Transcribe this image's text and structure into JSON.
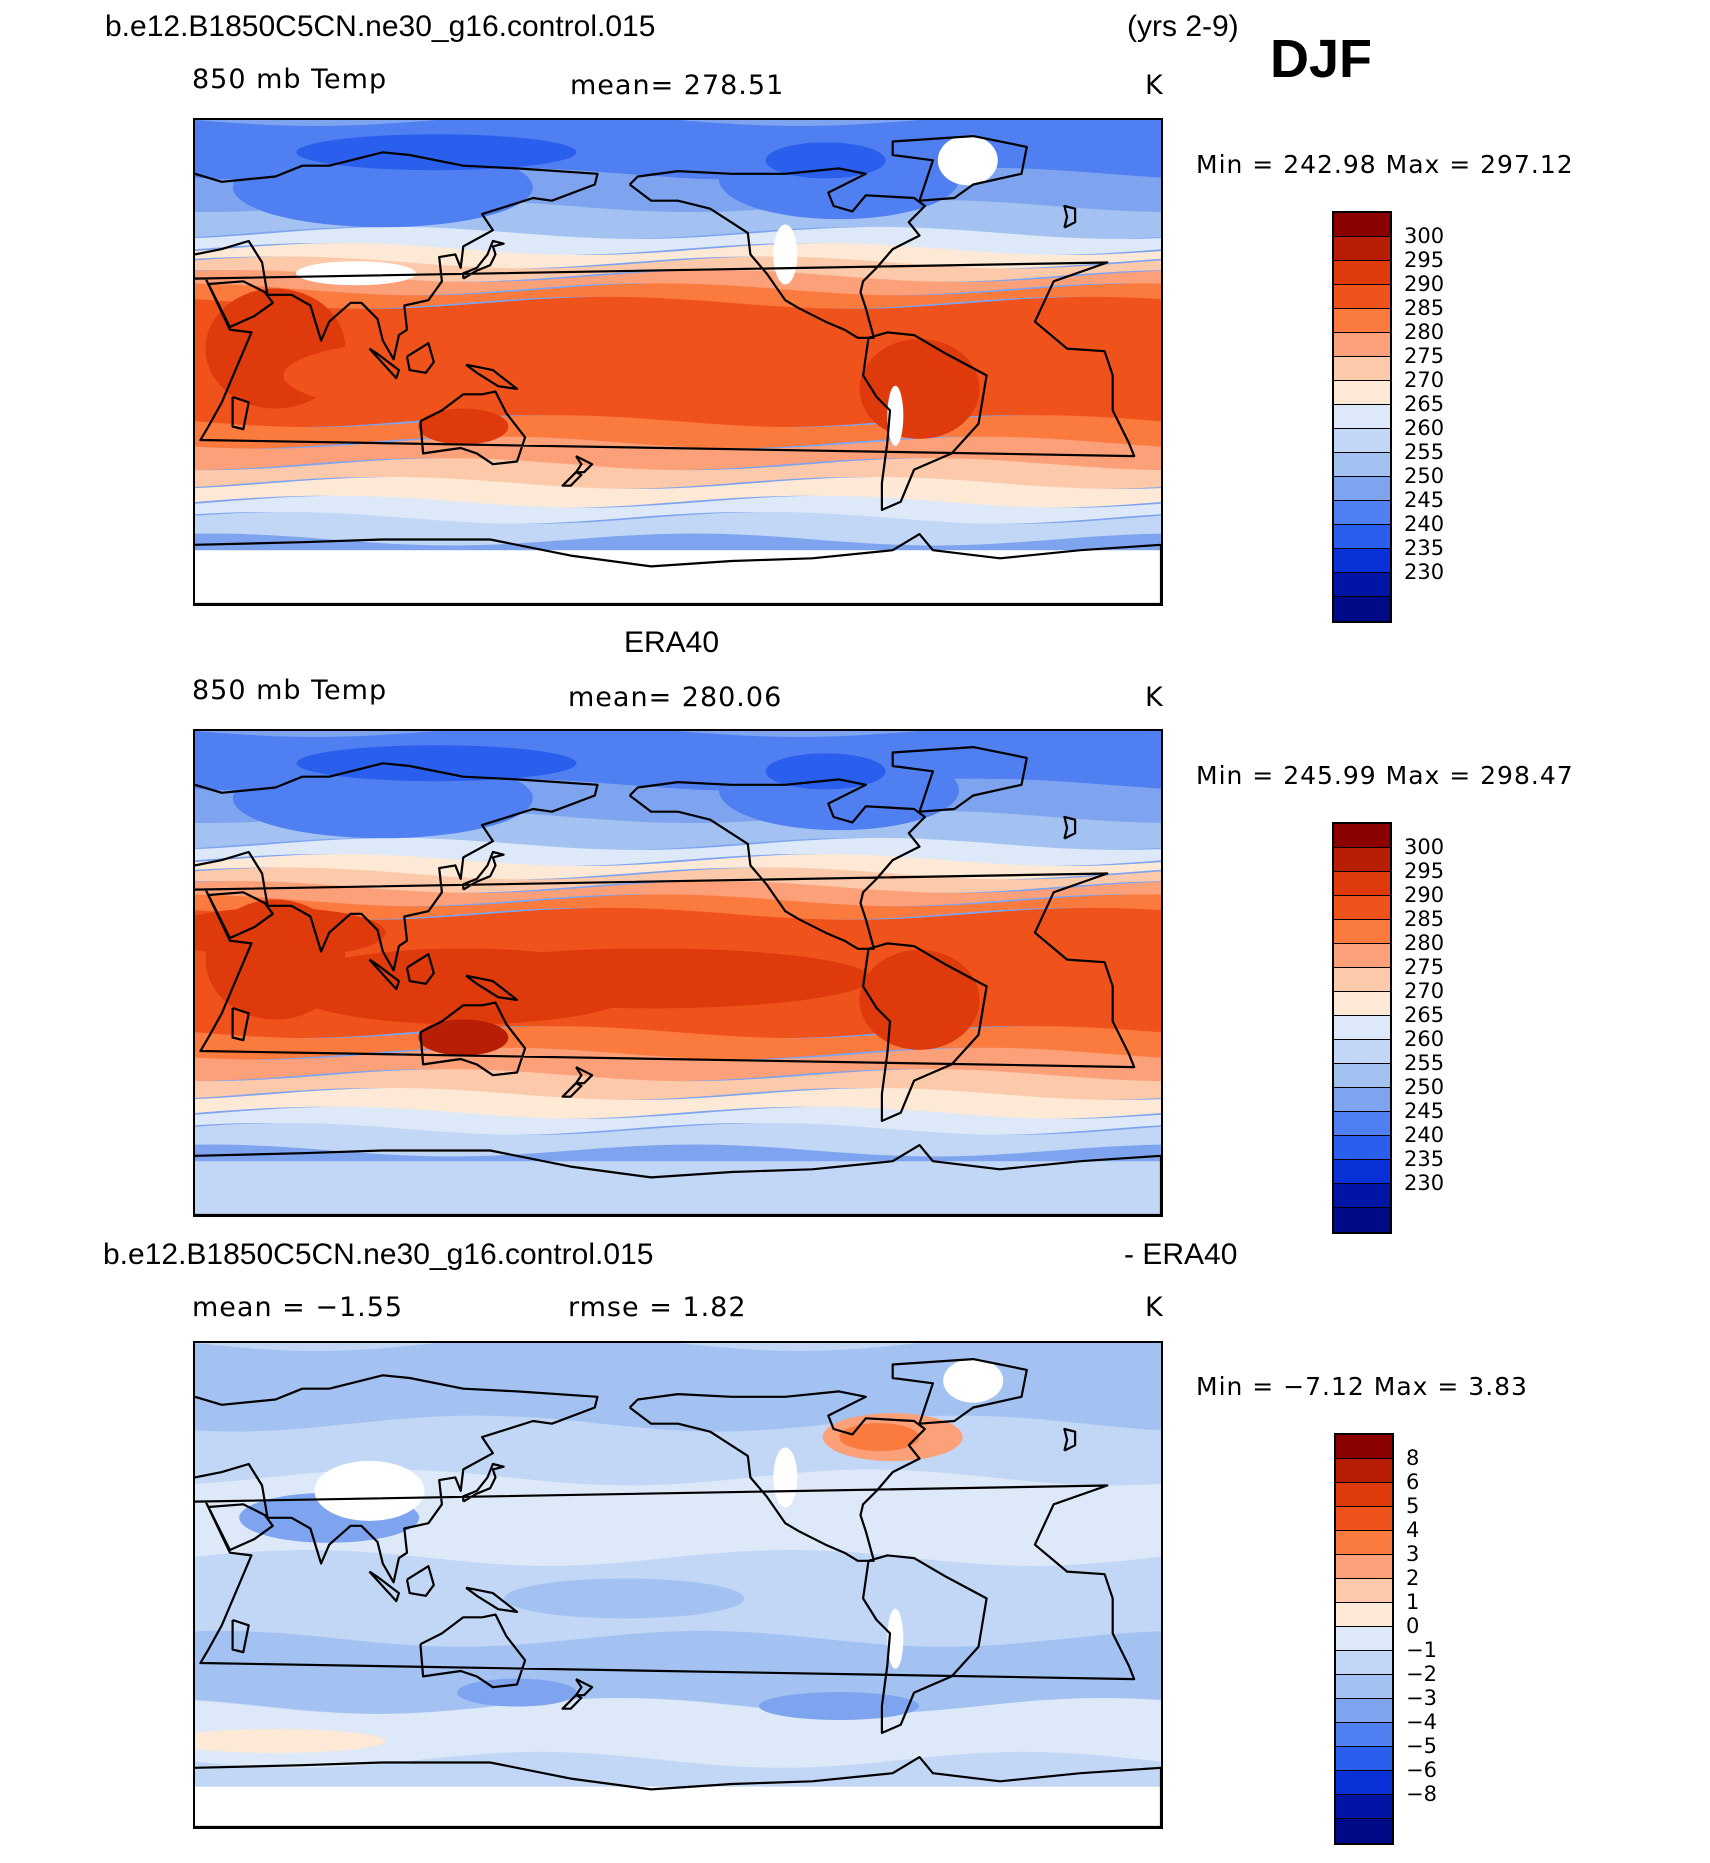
{
  "header": {
    "case_name": "b.e12.B1850C5CN.ne30_g16.control.015",
    "years": "(yrs 2-9)",
    "season": "DJF"
  },
  "colors": {
    "temp_palette": [
      "#8b0000",
      "#b81e06",
      "#de3a0c",
      "#f0521c",
      "#fb7a3e",
      "#fca07a",
      "#fcc9aa",
      "#fde9d5",
      "#dde9f8",
      "#c2d6f5",
      "#a3c2f2",
      "#7fa4ef",
      "#4f7ff0",
      "#2a5fee",
      "#0a30d8",
      "#0014a6",
      "#000a86"
    ],
    "diff_palette": [
      "#8b0000",
      "#b81e06",
      "#de3a0c",
      "#f0521c",
      "#fb7a3e",
      "#fca07a",
      "#fcc9aa",
      "#fde9d5",
      "#dde9f8",
      "#c2d6f5",
      "#a3c2f2",
      "#7fa4ef",
      "#4f7ff0",
      "#2a5fee",
      "#0a30d8",
      "#0014a6",
      "#000a86"
    ]
  },
  "panels": [
    {
      "id": "model",
      "title": "",
      "variable": "850 mb Temp",
      "stat_left": "",
      "stat_mean": "mean=  278.51",
      "units": "K",
      "min_max": "Min  =  242.98  Max  =  297.12",
      "colorbar_labels": [
        "300",
        "295",
        "290",
        "285",
        "280",
        "275",
        "270",
        "265",
        "260",
        "255",
        "250",
        "245",
        "240",
        "235",
        "230"
      ]
    },
    {
      "id": "obs",
      "title": "ERA40",
      "variable": "850 mb Temp",
      "stat_left": "",
      "stat_mean": "mean=  280.06",
      "units": "K",
      "min_max": "Min  =  245.99  Max  =  298.47",
      "colorbar_labels": [
        "300",
        "295",
        "290",
        "285",
        "280",
        "275",
        "270",
        "265",
        "260",
        "255",
        "250",
        "245",
        "240",
        "235",
        "230"
      ]
    },
    {
      "id": "diff",
      "title_left": "b.e12.B1850C5CN.ne30_g16.control.015",
      "title_right": "- ERA40",
      "variable": "",
      "stat_left": "mean =    −1.55",
      "stat_mean": "rmse  =     1.82",
      "units": "K",
      "min_max": "Min  =    −7.12  Max  =     3.83",
      "colorbar_labels": [
        "8",
        "6",
        "5",
        "4",
        "3",
        "2",
        "1",
        "0",
        "−1",
        "−2",
        "−3",
        "−4",
        "−5",
        "−6",
        "−8"
      ]
    }
  ]
}
